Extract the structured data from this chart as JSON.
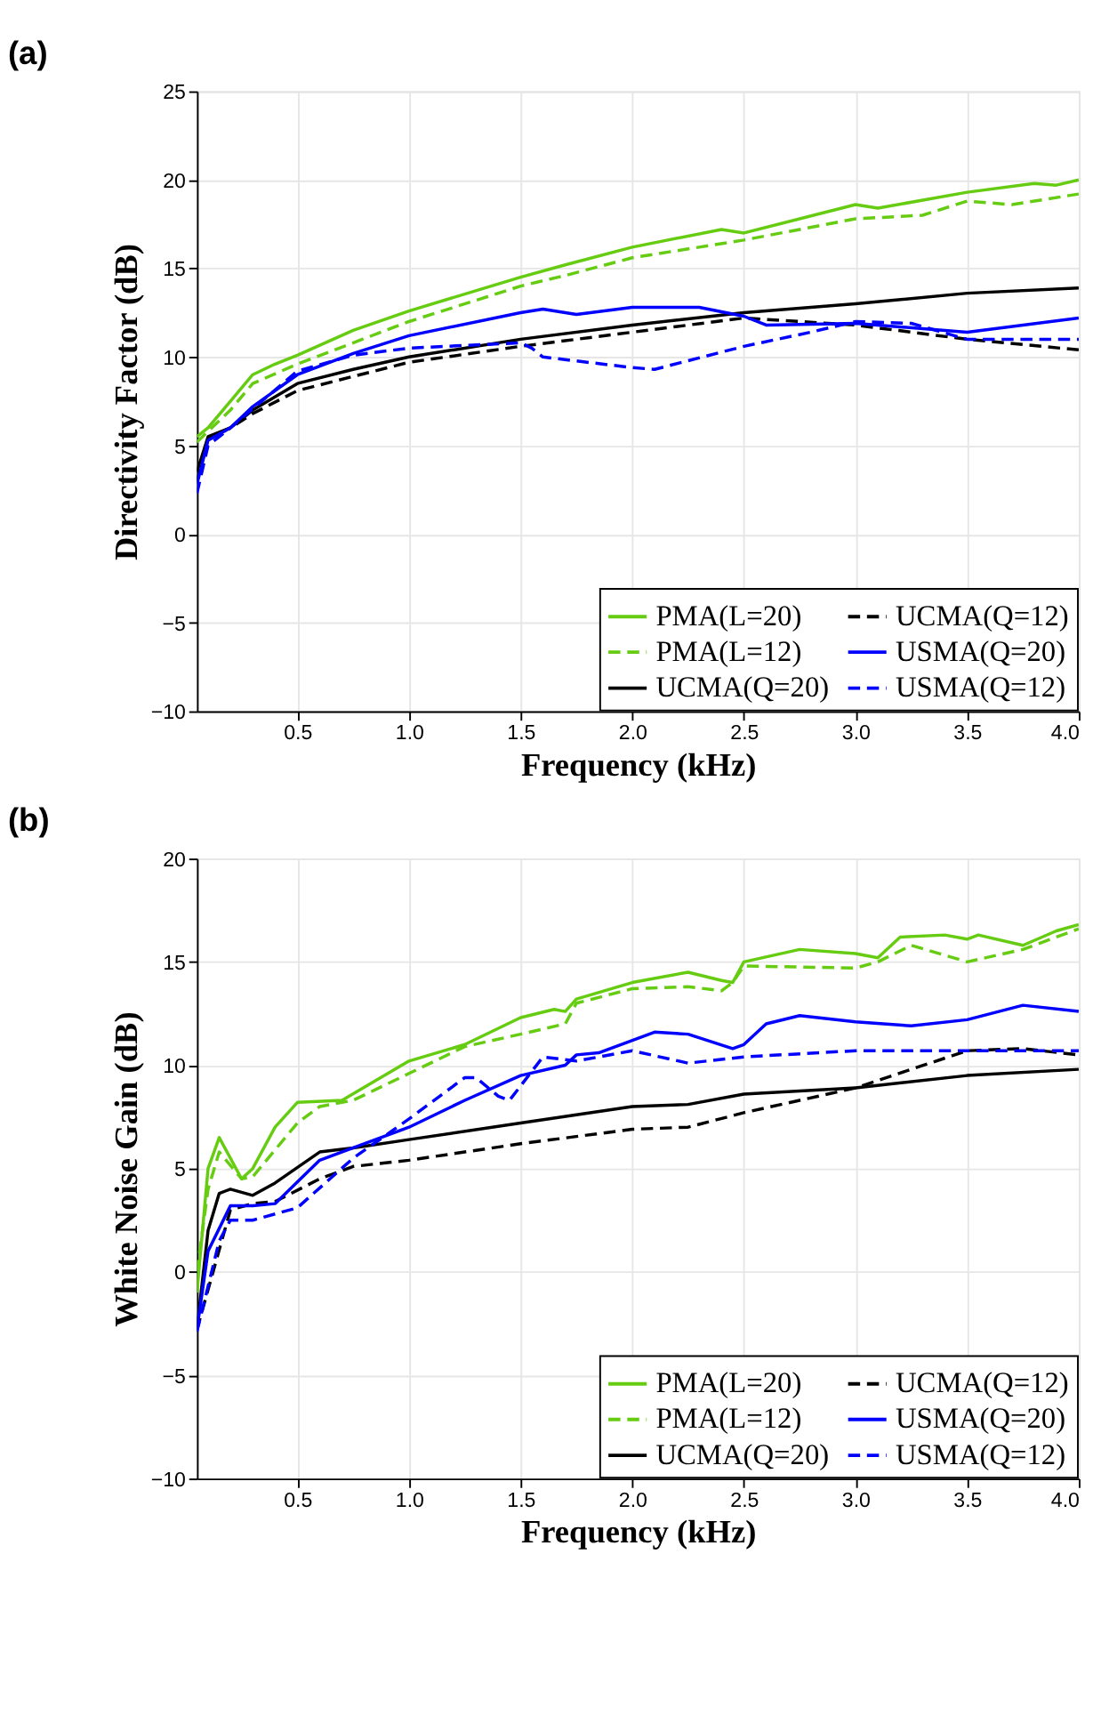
{
  "chart_data": [
    {
      "type": "line",
      "title": "(a)",
      "xlabel": "Frequency (kHz)",
      "ylabel": "Directivity Factor (dB)",
      "xlim": [
        0.05,
        4.0
      ],
      "ylim": [
        -10,
        25
      ],
      "xticks": [
        0.5,
        {
          "value": 1,
          "label": "1.0"
        },
        1.5,
        {
          "value": 2,
          "label": "2.0"
        },
        2.5,
        {
          "value": 3,
          "label": "3.0"
        },
        3.5,
        {
          "value": 4,
          "label": "4.0"
        }
      ],
      "yticks": [
        -10,
        -5,
        0,
        5,
        10,
        15,
        20,
        25
      ],
      "grid": true,
      "legend": "bottom right",
      "series": [
        {
          "name": "PMA(L=20)",
          "color": "#66cc11",
          "line_style": "solid",
          "x": [
            0.05,
            0.1,
            0.2,
            0.3,
            0.4,
            0.5,
            0.75,
            1.0,
            1.5,
            1.7,
            2.0,
            2.4,
            2.5,
            3.0,
            3.1,
            3.5,
            3.8,
            3.9,
            4.0
          ],
          "values": [
            5.5,
            6.0,
            7.5,
            9.0,
            9.6,
            10.1,
            11.5,
            12.6,
            14.5,
            15.2,
            16.2,
            17.2,
            17.0,
            18.6,
            18.4,
            19.3,
            19.8,
            19.7,
            20.0
          ]
        },
        {
          "name": "PMA(L=12)",
          "color": "#66cc11",
          "line_style": "dashed",
          "x": [
            0.05,
            0.2,
            0.3,
            0.5,
            1.0,
            1.5,
            1.7,
            2.0,
            2.5,
            3.0,
            3.3,
            3.5,
            3.7,
            4.0
          ],
          "values": [
            5.2,
            7.0,
            8.5,
            9.6,
            12.0,
            14.0,
            14.6,
            15.6,
            16.6,
            17.8,
            18.0,
            18.8,
            18.6,
            19.2
          ]
        },
        {
          "name": "UCMA(Q=20)",
          "color": "#000000",
          "line_style": "solid",
          "x": [
            0.05,
            0.1,
            0.2,
            0.3,
            0.5,
            0.75,
            1.0,
            1.5,
            2.0,
            2.5,
            3.0,
            3.5,
            4.0
          ],
          "values": [
            3.5,
            5.5,
            6.0,
            7.0,
            8.5,
            9.3,
            10.0,
            11.0,
            11.8,
            12.5,
            13.0,
            13.6,
            13.9
          ]
        },
        {
          "name": "UCMA(Q=12)",
          "color": "#000000",
          "line_style": "dashed",
          "x": [
            0.05,
            0.1,
            0.2,
            0.3,
            0.5,
            1.0,
            1.5,
            2.0,
            2.5,
            3.0,
            3.5,
            4.0
          ],
          "values": [
            3.0,
            5.4,
            6.0,
            6.8,
            8.1,
            9.7,
            10.6,
            11.4,
            12.2,
            11.8,
            11.0,
            10.4
          ]
        },
        {
          "name": "USMA(Q=20)",
          "color": "#0000ff",
          "line_style": "solid",
          "x": [
            0.05,
            0.1,
            0.2,
            0.3,
            0.5,
            0.75,
            1.0,
            1.5,
            1.6,
            1.75,
            2.0,
            2.3,
            2.5,
            2.6,
            3.0,
            3.5,
            4.0
          ],
          "values": [
            2.8,
            5.3,
            6.0,
            7.2,
            9.0,
            10.2,
            11.2,
            12.5,
            12.7,
            12.4,
            12.8,
            12.8,
            12.3,
            11.8,
            11.9,
            11.4,
            12.2
          ]
        },
        {
          "name": "USMA(Q=12)",
          "color": "#0000ff",
          "line_style": "dashed",
          "x": [
            0.05,
            0.1,
            0.2,
            0.5,
            0.75,
            1.0,
            1.5,
            1.55,
            1.6,
            2.0,
            2.1,
            2.5,
            2.8,
            3.0,
            3.25,
            3.5,
            4.0
          ],
          "values": [
            2.3,
            5.0,
            6.0,
            9.2,
            10.1,
            10.5,
            10.8,
            10.5,
            10.0,
            9.4,
            9.3,
            10.6,
            11.4,
            12.0,
            11.9,
            11.0,
            11.0
          ]
        }
      ]
    },
    {
      "type": "line",
      "title": "(b)",
      "xlabel": "Frequency (kHz)",
      "ylabel": "White Noise Gain (dB)",
      "xlim": [
        0.05,
        4.0
      ],
      "ylim": [
        -10,
        20
      ],
      "xticks": [
        0.5,
        {
          "value": 1,
          "label": "1.0"
        },
        1.5,
        {
          "value": 2,
          "label": "2.0"
        },
        2.5,
        {
          "value": 3,
          "label": "3.0"
        },
        3.5,
        {
          "value": 4,
          "label": "4.0"
        }
      ],
      "yticks": [
        -10,
        -5,
        0,
        5,
        10,
        15,
        20
      ],
      "grid": true,
      "legend": "bottom right",
      "series": [
        {
          "name": "PMA(L=20)",
          "color": "#66cc11",
          "line_style": "solid",
          "x": [
            0.05,
            0.1,
            0.15,
            0.25,
            0.3,
            0.4,
            0.5,
            0.7,
            1.0,
            1.25,
            1.5,
            1.65,
            1.7,
            1.75,
            2.0,
            2.25,
            2.4,
            2.45,
            2.5,
            2.75,
            3.0,
            3.1,
            3.2,
            3.4,
            3.5,
            3.55,
            3.75,
            3.9,
            4.0
          ],
          "values": [
            -1.0,
            5.0,
            6.5,
            4.5,
            5.0,
            7.0,
            8.2,
            8.3,
            10.2,
            11.0,
            12.3,
            12.7,
            12.6,
            13.2,
            14.0,
            14.5,
            14.1,
            14.0,
            15.0,
            15.6,
            15.4,
            15.2,
            16.2,
            16.3,
            16.1,
            16.3,
            15.8,
            16.5,
            16.8
          ]
        },
        {
          "name": "PMA(L=12)",
          "color": "#66cc11",
          "line_style": "dashed",
          "x": [
            0.05,
            0.1,
            0.15,
            0.25,
            0.3,
            0.5,
            0.6,
            0.75,
            1.0,
            1.25,
            1.5,
            1.7,
            1.75,
            2.0,
            2.25,
            2.4,
            2.45,
            2.5,
            3.0,
            3.1,
            3.25,
            3.5,
            3.75,
            4.0
          ],
          "values": [
            0.0,
            4.0,
            5.8,
            4.5,
            4.6,
            7.2,
            8.0,
            8.3,
            9.6,
            10.9,
            11.5,
            12.0,
            13.0,
            13.7,
            13.8,
            13.6,
            14.0,
            14.8,
            14.7,
            15.0,
            15.8,
            15.0,
            15.6,
            16.6
          ]
        },
        {
          "name": "UCMA(Q=20)",
          "color": "#000000",
          "line_style": "solid",
          "x": [
            0.05,
            0.1,
            0.15,
            0.2,
            0.3,
            0.4,
            0.6,
            0.75,
            1.0,
            1.5,
            2.0,
            2.25,
            2.5,
            3.0,
            3.5,
            4.0
          ],
          "values": [
            -2.8,
            2.0,
            3.8,
            4.0,
            3.7,
            4.3,
            5.8,
            6.0,
            6.4,
            7.2,
            8.0,
            8.1,
            8.6,
            8.9,
            9.5,
            9.8
          ]
        },
        {
          "name": "UCMA(Q=12)",
          "color": "#000000",
          "line_style": "dashed",
          "x": [
            0.05,
            0.2,
            0.3,
            0.4,
            0.6,
            0.75,
            1.0,
            1.5,
            2.0,
            2.25,
            2.5,
            2.75,
            3.0,
            3.25,
            3.5,
            3.75,
            4.0
          ],
          "values": [
            -2.8,
            3.0,
            3.3,
            3.4,
            4.5,
            5.1,
            5.4,
            6.2,
            6.9,
            7.0,
            7.7,
            8.3,
            8.9,
            9.8,
            10.7,
            10.8,
            10.5
          ]
        },
        {
          "name": "USMA(Q=20)",
          "color": "#0000ff",
          "line_style": "solid",
          "x": [
            0.05,
            0.1,
            0.2,
            0.3,
            0.4,
            0.6,
            0.75,
            1.0,
            1.25,
            1.5,
            1.7,
            1.75,
            1.85,
            2.1,
            2.25,
            2.45,
            2.5,
            2.6,
            2.75,
            3.0,
            3.25,
            3.5,
            3.75,
            4.0
          ],
          "values": [
            -2.8,
            1.0,
            3.2,
            3.2,
            3.3,
            5.4,
            6.0,
            7.0,
            8.3,
            9.5,
            10.0,
            10.5,
            10.6,
            11.6,
            11.5,
            10.8,
            11.0,
            12.0,
            12.4,
            12.1,
            11.9,
            12.2,
            12.9,
            12.6
          ]
        },
        {
          "name": "USMA(Q=12)",
          "color": "#0000ff",
          "line_style": "dashed",
          "x": [
            0.05,
            0.15,
            0.2,
            0.3,
            0.5,
            0.75,
            1.0,
            1.25,
            1.3,
            1.4,
            1.45,
            1.5,
            1.6,
            1.75,
            2.0,
            2.25,
            2.5,
            3.0,
            4.0
          ],
          "values": [
            -2.9,
            1.5,
            2.5,
            2.5,
            3.1,
            5.5,
            7.4,
            9.4,
            9.4,
            8.5,
            8.3,
            9.0,
            10.4,
            10.2,
            10.7,
            10.1,
            10.4,
            10.7,
            10.7
          ]
        }
      ]
    }
  ]
}
